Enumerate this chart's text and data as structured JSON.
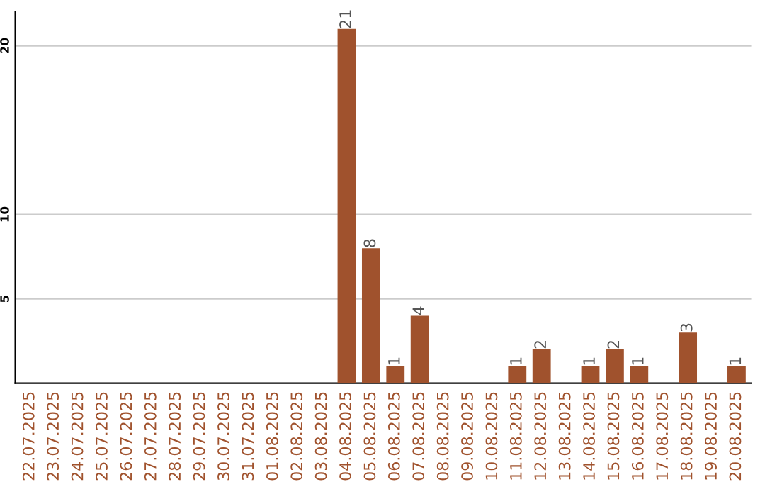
{
  "chart_data": {
    "type": "bar",
    "categories": [
      "22.07.2025",
      "23.07.2025",
      "24.07.2025",
      "25.07.2025",
      "26.07.2025",
      "27.07.2025",
      "28.07.2025",
      "29.07.2025",
      "30.07.2025",
      "31.07.2025",
      "01.08.2025",
      "02.08.2025",
      "03.08.2025",
      "04.08.2025",
      "05.08.2025",
      "06.08.2025",
      "07.08.2025",
      "08.08.2025",
      "09.08.2025",
      "10.08.2025",
      "11.08.2025",
      "12.08.2025",
      "13.08.2025",
      "14.08.2025",
      "15.08.2025",
      "16.08.2025",
      "17.08.2025",
      "18.08.2025",
      "19.08.2025",
      "20.08.2025"
    ],
    "values": [
      0,
      0,
      0,
      0,
      0,
      0,
      0,
      0,
      0,
      0,
      0,
      0,
      0,
      21,
      8,
      1,
      4,
      0,
      0,
      0,
      1,
      2,
      0,
      1,
      2,
      1,
      0,
      3,
      0,
      1
    ],
    "value_labels": [
      null,
      null,
      null,
      null,
      null,
      null,
      null,
      null,
      null,
      null,
      null,
      null,
      null,
      "21",
      "8",
      "1",
      "4",
      null,
      null,
      null,
      "1",
      "2",
      null,
      "1",
      "2",
      "1",
      null,
      "3",
      null,
      "1"
    ],
    "color": "#a0522d",
    "ylim": [
      0,
      22
    ],
    "yticks": [
      5,
      10,
      20
    ],
    "grid": "y"
  }
}
